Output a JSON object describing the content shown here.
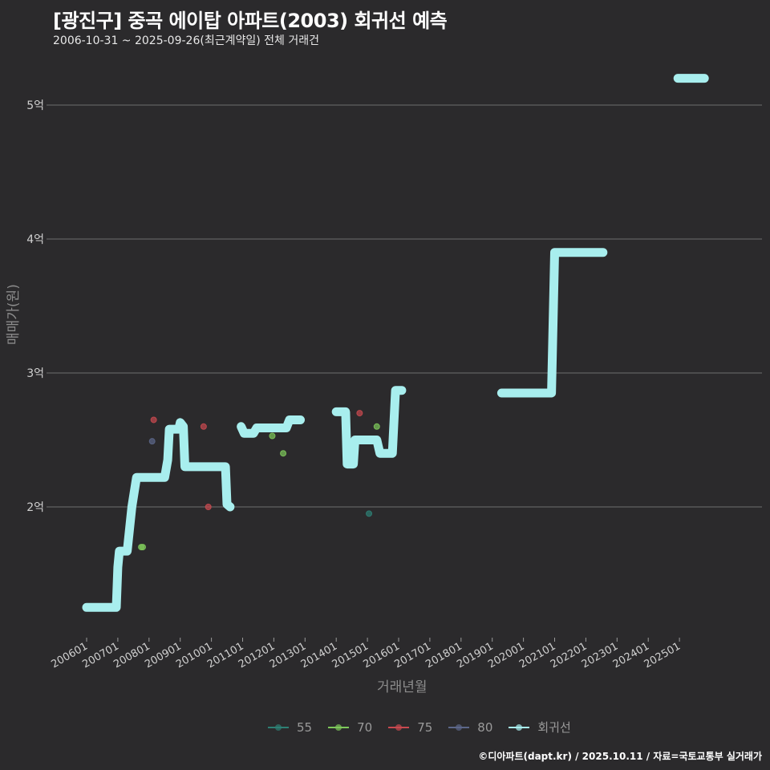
{
  "header": {
    "title": "[광진구] 중곡 에이탑 아파트(2003) 회귀선 예측",
    "subtitle": "2006-10-31 ~ 2025-09-26(최근계약일) 전체 거래건"
  },
  "footer": {
    "credit": "©디아파트(dapt.kr) / 2025.10.11 / 자료=국토교통부 실거래가"
  },
  "colors": {
    "background": "#2b2a2c",
    "grid": "#6e6e6e",
    "regression": "#a8eeee",
    "s55": "#2e7f74",
    "s70": "#7ec85a",
    "s75": "#c8494f",
    "s80": "#5c6789"
  },
  "chart_data": {
    "type": "line",
    "title": "[광진구] 중곡 에이탑 아파트(2003) 회귀선 예측",
    "subtitle": "2006-10-31 ~ 2025-09-26(최근계약일) 전체 거래건",
    "xlabel": "거래년월",
    "ylabel": "매매가(원)",
    "x_ticks": [
      "200601",
      "200701",
      "200801",
      "200901",
      "201001",
      "201101",
      "201201",
      "201301",
      "201401",
      "201501",
      "201601",
      "201701",
      "201801",
      "201901",
      "202001",
      "202101",
      "202201",
      "202301",
      "202401",
      "202501"
    ],
    "y_ticks": [
      {
        "value": 2,
        "label": "2억"
      },
      {
        "value": 3,
        "label": "3억"
      },
      {
        "value": 4,
        "label": "4억"
      },
      {
        "value": 5,
        "label": "5억"
      }
    ],
    "ylim": [
      1.1,
      5.4
    ],
    "grid": true,
    "legend_position": "bottom",
    "legend": [
      "55",
      "70",
      "75",
      "80",
      "회귀선"
    ],
    "regression_segments": [
      [
        [
          2006.0,
          1.25
        ],
        [
          2006.95,
          1.25
        ],
        [
          2007.0,
          1.55
        ],
        [
          2007.05,
          1.67
        ],
        [
          2007.3,
          1.67
        ],
        [
          2007.45,
          2.0
        ],
        [
          2007.6,
          2.22
        ],
        [
          2008.5,
          2.22
        ],
        [
          2008.6,
          2.35
        ],
        [
          2008.65,
          2.58
        ],
        [
          2008.95,
          2.58
        ],
        [
          2009.0,
          2.63
        ],
        [
          2009.1,
          2.6
        ],
        [
          2009.15,
          2.3
        ],
        [
          2010.45,
          2.3
        ],
        [
          2010.5,
          2.02
        ],
        [
          2010.6,
          2.0
        ]
      ],
      [
        [
          2010.95,
          2.6
        ],
        [
          2011.05,
          2.55
        ],
        [
          2011.35,
          2.55
        ],
        [
          2011.45,
          2.59
        ],
        [
          2012.4,
          2.59
        ],
        [
          2012.5,
          2.65
        ],
        [
          2012.85,
          2.65
        ]
      ],
      [
        [
          2014.0,
          2.71
        ],
        [
          2014.3,
          2.71
        ],
        [
          2014.35,
          2.32
        ],
        [
          2014.55,
          2.32
        ],
        [
          2014.6,
          2.5
        ],
        [
          2015.3,
          2.5
        ],
        [
          2015.4,
          2.4
        ],
        [
          2015.8,
          2.4
        ],
        [
          2015.9,
          2.87
        ],
        [
          2016.1,
          2.87
        ]
      ],
      [
        [
          2019.3,
          2.85
        ],
        [
          2020.9,
          2.85
        ],
        [
          2021.0,
          3.9
        ],
        [
          2022.55,
          3.9
        ]
      ],
      [
        [
          2024.95,
          5.2
        ],
        [
          2025.8,
          5.2
        ]
      ]
    ],
    "series": [
      {
        "name": "55",
        "points": [
          [
            2015.05,
            1.95
          ]
        ]
      },
      {
        "name": "70",
        "points": [
          [
            2007.75,
            1.7
          ],
          [
            2007.8,
            1.7
          ],
          [
            2011.95,
            2.53
          ],
          [
            2012.3,
            2.4
          ],
          [
            2015.3,
            2.6
          ]
        ]
      },
      {
        "name": "75",
        "points": [
          [
            2008.15,
            2.65
          ],
          [
            2009.75,
            2.6
          ],
          [
            2009.9,
            2.0
          ],
          [
            2014.75,
            2.7
          ]
        ]
      },
      {
        "name": "80",
        "points": [
          [
            2008.1,
            2.49
          ]
        ]
      }
    ]
  },
  "axes": {
    "xlabel": "거래년월",
    "ylabel": "매매가(원)"
  },
  "legend": {
    "items": [
      {
        "label": "55",
        "color": "#2e7f74"
      },
      {
        "label": "70",
        "color": "#7ec85a"
      },
      {
        "label": "75",
        "color": "#c8494f"
      },
      {
        "label": "80",
        "color": "#5c6789"
      },
      {
        "label": "회귀선",
        "color": "#a8eeee"
      }
    ]
  }
}
